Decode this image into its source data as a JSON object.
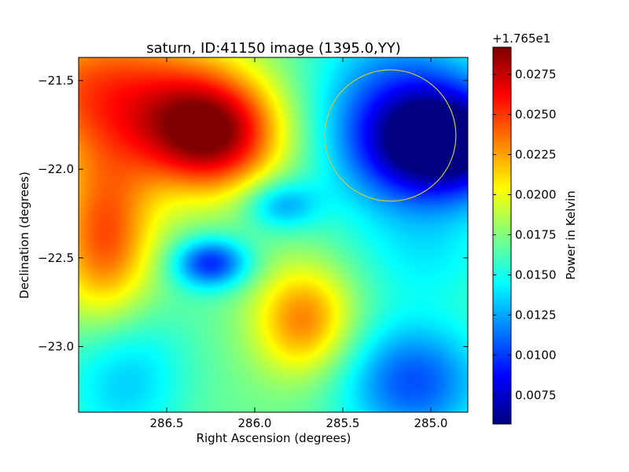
{
  "chart_data": {
    "type": "heatmap",
    "title": "saturn, ID:41150 image (1395.0,YY)",
    "xlabel": "Right Ascension (degrees)",
    "ylabel": "Declination (degrees)",
    "xlim": [
      287.0,
      284.79
    ],
    "ylim": [
      -23.37,
      -21.37
    ],
    "x_axis_inverted": true,
    "x_ticks": [
      286.5,
      286.0,
      285.5,
      285.0
    ],
    "x_tick_labels": [
      "286.5",
      "286.0",
      "285.5",
      "285.0"
    ],
    "y_ticks": [
      -21.5,
      -22.0,
      -22.5,
      -23.0
    ],
    "y_tick_labels": [
      "−21.5",
      "−22.0",
      "−22.5",
      "−23.0"
    ],
    "colorbar": {
      "label": "Power in Kelvin",
      "offset_text": "+1.765e1",
      "range": [
        0.0057,
        0.0292
      ],
      "ticks": [
        0.0075,
        0.01,
        0.0125,
        0.015,
        0.0175,
        0.02,
        0.0225,
        0.025,
        0.0275
      ],
      "tick_labels": [
        "0.0075",
        "0.0100",
        "0.0125",
        "0.0150",
        "0.0175",
        "0.0200",
        "0.0225",
        "0.0250",
        "0.0275"
      ],
      "colormap": "jet"
    },
    "base_level": 0.017,
    "features": [
      {
        "ra": 286.25,
        "dec": -21.8,
        "sigma_ra": 0.28,
        "sigma_dec": 0.23,
        "amp": 0.0115
      },
      {
        "ra": 286.85,
        "dec": -21.55,
        "sigma_ra": 0.45,
        "sigma_dec": 0.3,
        "amp": 0.0075
      },
      {
        "ra": 286.85,
        "dec": -22.4,
        "sigma_ra": 0.2,
        "sigma_dec": 0.35,
        "amp": 0.0075
      },
      {
        "ra": 285.72,
        "dec": -22.85,
        "sigma_ra": 0.2,
        "sigma_dec": 0.22,
        "amp": 0.0065
      },
      {
        "ra": 284.9,
        "dec": -21.85,
        "sigma_ra": 0.3,
        "sigma_dec": 0.22,
        "amp": -0.0112
      },
      {
        "ra": 285.2,
        "dec": -21.7,
        "sigma_ra": 0.35,
        "sigma_dec": 0.4,
        "amp": -0.006
      },
      {
        "ra": 285.85,
        "dec": -22.2,
        "sigma_ra": 0.15,
        "sigma_dec": 0.1,
        "amp": -0.0045
      },
      {
        "ra": 286.25,
        "dec": -22.53,
        "sigma_ra": 0.15,
        "sigma_dec": 0.1,
        "amp": -0.0075
      },
      {
        "ra": 285.1,
        "dec": -23.2,
        "sigma_ra": 0.3,
        "sigma_dec": 0.25,
        "amp": -0.0065
      },
      {
        "ra": 286.75,
        "dec": -23.15,
        "sigma_ra": 0.25,
        "sigma_dec": 0.3,
        "amp": -0.004
      },
      {
        "ra": 285.0,
        "dec": -22.5,
        "sigma_ra": 0.3,
        "sigma_dec": 0.2,
        "amp": -0.002
      }
    ],
    "annotation_circle": {
      "ra": 285.23,
      "dec": -21.81,
      "radius_deg": 0.37,
      "color": "#c8c84a"
    }
  }
}
